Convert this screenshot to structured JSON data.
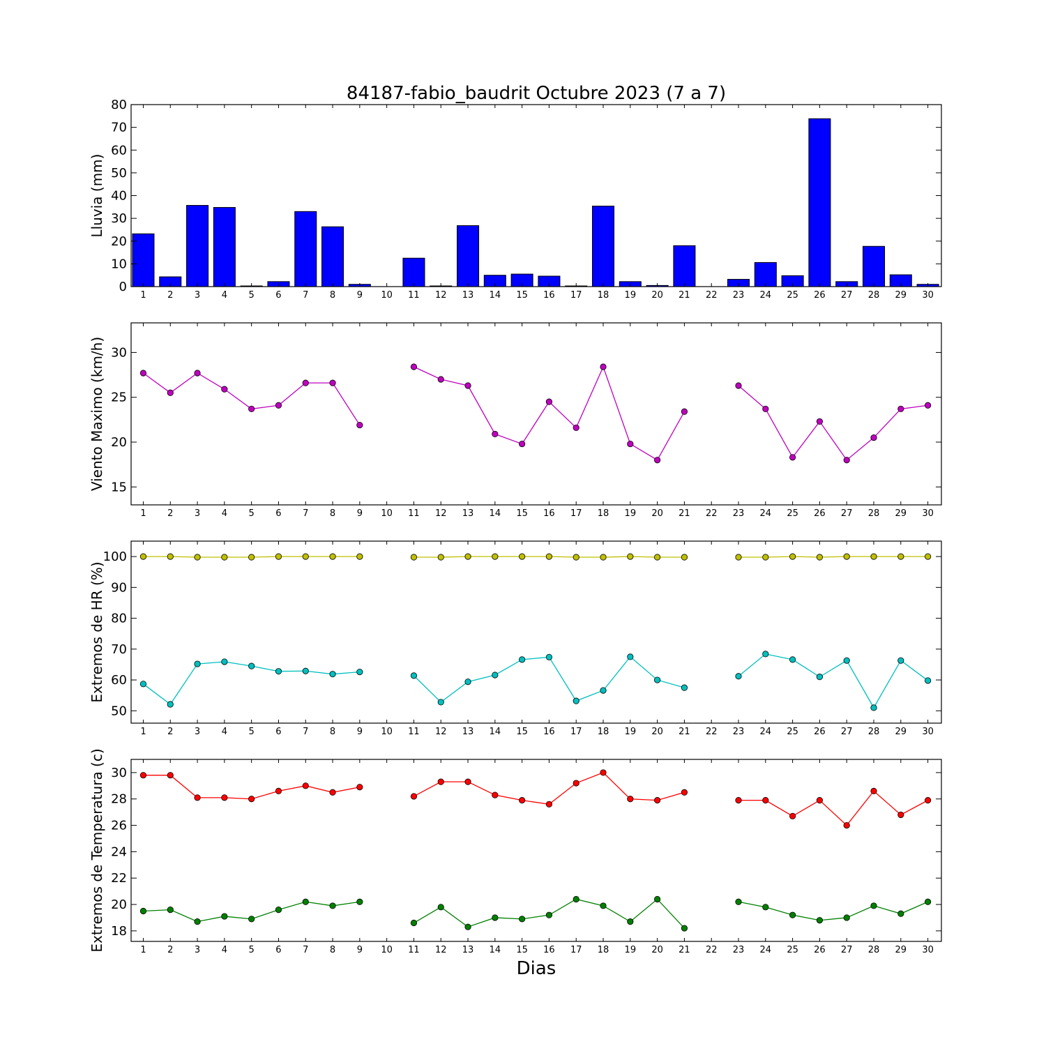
{
  "title": "84187-fabio_baudrit Octubre 2023  (7 a 7)",
  "xlabel": "Dias",
  "chart_data": [
    {
      "type": "bar",
      "ylabel": "Lluvia (mm)",
      "ylim": [
        0,
        80
      ],
      "yticks": [
        0,
        10,
        20,
        30,
        40,
        50,
        60,
        70,
        80
      ],
      "x": [
        1,
        2,
        3,
        4,
        5,
        6,
        7,
        8,
        9,
        10,
        11,
        12,
        13,
        14,
        15,
        16,
        17,
        18,
        19,
        20,
        21,
        22,
        23,
        24,
        25,
        26,
        27,
        28,
        29,
        30
      ],
      "color": "#0000ff",
      "values": [
        23.2,
        4.3,
        35.7,
        34.8,
        0.3,
        2.2,
        33.0,
        26.3,
        1.0,
        0,
        12.5,
        0.3,
        26.8,
        5.0,
        5.5,
        4.6,
        0.3,
        35.4,
        2.2,
        0.5,
        18.0,
        0,
        3.2,
        10.6,
        4.8,
        73.8,
        2.2,
        17.7,
        5.2,
        1.0
      ]
    },
    {
      "type": "line",
      "ylabel": "Viento Maximo (km/h)",
      "ylim": [
        13,
        33.3
      ],
      "yticks": [
        15,
        20,
        25,
        30
      ],
      "x": [
        1,
        2,
        3,
        4,
        5,
        6,
        7,
        8,
        9,
        10,
        11,
        12,
        13,
        14,
        15,
        16,
        17,
        18,
        19,
        20,
        21,
        22,
        23,
        24,
        25,
        26,
        27,
        28,
        29,
        30
      ],
      "series": [
        {
          "color": "#bf00bf",
          "values": [
            27.7,
            25.5,
            27.7,
            25.9,
            23.7,
            24.1,
            26.6,
            26.6,
            21.9,
            null,
            28.4,
            27.0,
            26.3,
            20.9,
            19.8,
            24.5,
            21.6,
            28.4,
            19.8,
            18.0,
            23.4,
            null,
            26.3,
            23.7,
            18.3,
            22.3,
            18.0,
            20.5,
            23.7,
            24.1
          ]
        }
      ]
    },
    {
      "type": "line",
      "ylabel": "Extremos de HR (%)",
      "ylim": [
        46,
        105
      ],
      "yticks": [
        50,
        60,
        70,
        80,
        90,
        100
      ],
      "x": [
        1,
        2,
        3,
        4,
        5,
        6,
        7,
        8,
        9,
        10,
        11,
        12,
        13,
        14,
        15,
        16,
        17,
        18,
        19,
        20,
        21,
        22,
        23,
        24,
        25,
        26,
        27,
        28,
        29,
        30
      ],
      "series": [
        {
          "color": "#bfbf00",
          "values": [
            100,
            100,
            99.8,
            99.8,
            99.8,
            100,
            100,
            100,
            100,
            null,
            99.8,
            99.8,
            100,
            100,
            100,
            100,
            99.8,
            99.8,
            100,
            99.8,
            99.8,
            null,
            99.8,
            99.8,
            100,
            99.8,
            100,
            100,
            100,
            100
          ]
        },
        {
          "color": "#00bfbf",
          "values": [
            58.7,
            52.1,
            65.2,
            65.9,
            64.5,
            62.8,
            62.9,
            61.9,
            62.6,
            null,
            61.4,
            52.8,
            59.4,
            61.6,
            66.6,
            67.4,
            53.2,
            56.6,
            67.5,
            60.0,
            57.5,
            null,
            61.2,
            68.4,
            66.6,
            61.0,
            66.3,
            51.0,
            66.3,
            59.8
          ]
        }
      ]
    },
    {
      "type": "line",
      "ylabel": "Extremos de Temperatura (c)",
      "ylim": [
        17.2,
        31
      ],
      "yticks": [
        18,
        20,
        22,
        24,
        26,
        28,
        30
      ],
      "x": [
        1,
        2,
        3,
        4,
        5,
        6,
        7,
        8,
        9,
        10,
        11,
        12,
        13,
        14,
        15,
        16,
        17,
        18,
        19,
        20,
        21,
        22,
        23,
        24,
        25,
        26,
        27,
        28,
        29,
        30
      ],
      "series": [
        {
          "color": "#ff0000",
          "values": [
            29.8,
            29.8,
            28.1,
            28.1,
            28.0,
            28.6,
            29.0,
            28.5,
            28.9,
            null,
            28.2,
            29.3,
            29.3,
            28.3,
            27.9,
            27.6,
            29.2,
            30.0,
            28.0,
            27.9,
            28.5,
            null,
            27.9,
            27.9,
            26.7,
            27.9,
            26.0,
            28.6,
            26.8,
            27.9
          ]
        },
        {
          "color": "#008000",
          "values": [
            19.5,
            19.6,
            18.7,
            19.1,
            18.9,
            19.6,
            20.2,
            19.9,
            20.2,
            null,
            18.6,
            19.8,
            18.3,
            19.0,
            18.9,
            19.2,
            20.4,
            19.9,
            18.7,
            20.4,
            18.2,
            null,
            20.2,
            19.8,
            19.2,
            18.8,
            19.0,
            19.9,
            19.3,
            20.2
          ]
        }
      ]
    }
  ]
}
